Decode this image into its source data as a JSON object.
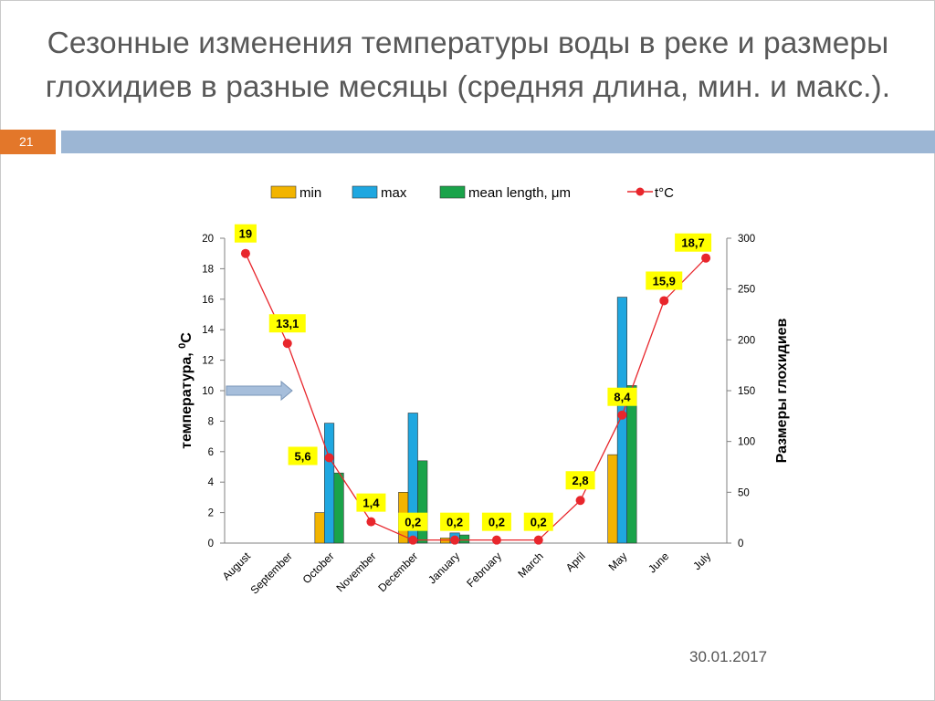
{
  "slide": {
    "title": "Сезонные изменения температуры воды в реке и размеры глохидиев в разные месяцы (средняя длина, мин. и макс.).",
    "number": "21",
    "date": "30.01.2017"
  },
  "chart_data": {
    "type": "bar",
    "categories": [
      "August",
      "September",
      "October",
      "November",
      "December",
      "January",
      "February",
      "March",
      "April",
      "May",
      "June",
      "July"
    ],
    "series": [
      {
        "name": "min",
        "type": "bar",
        "axis": "right",
        "color": "#f2b400",
        "values": [
          null,
          null,
          30,
          null,
          50,
          5,
          null,
          null,
          null,
          87,
          null,
          null
        ]
      },
      {
        "name": "max",
        "type": "bar",
        "axis": "right",
        "color": "#1fa7e0",
        "values": [
          null,
          null,
          118,
          null,
          128,
          10,
          null,
          null,
          null,
          242,
          null,
          null
        ]
      },
      {
        "name": "mean length, μm",
        "type": "bar",
        "axis": "right",
        "color": "#1aa34a",
        "values": [
          null,
          null,
          69,
          null,
          81,
          8,
          null,
          null,
          null,
          155,
          null,
          null
        ]
      },
      {
        "name": "t°C",
        "type": "line",
        "axis": "left",
        "color": "#e8262c",
        "values": [
          19,
          13.1,
          5.6,
          1.4,
          0.2,
          0.2,
          0.2,
          0.2,
          2.8,
          8.4,
          15.9,
          18.7
        ],
        "labels": [
          "19",
          "13,1",
          "5,6",
          "1,4",
          "0,2",
          "0,2",
          "0,2",
          "0,2",
          "2,8",
          "8,4",
          "15,9",
          "18,7"
        ]
      }
    ],
    "y_left": {
      "label": "температура, ",
      "label_sup": "0",
      "label_tail": "C",
      "min": 0,
      "max": 20,
      "step": 2
    },
    "y_right": {
      "label": "Размеры глохидиев",
      "min": 0,
      "max": 300,
      "step": 50
    },
    "legend_position": "top",
    "grid": false,
    "arrow_annotation": {
      "pointing": "right",
      "at_y": 10
    }
  }
}
